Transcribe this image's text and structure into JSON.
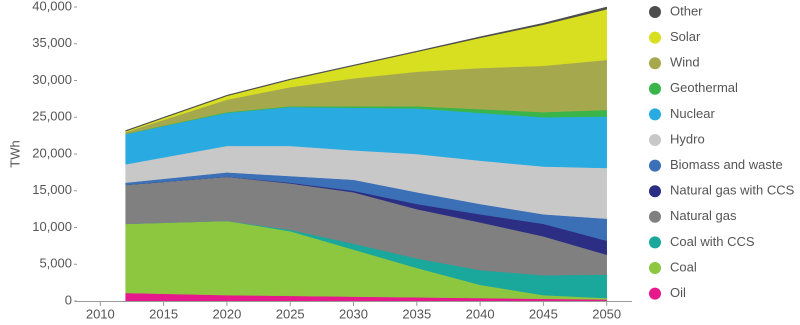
{
  "chart_data": {
    "type": "stacked-area",
    "y_label": "TWh",
    "x": [
      2012,
      2020,
      2025,
      2030,
      2035,
      2040,
      2045,
      2050
    ],
    "xlim": [
      2008,
      2052
    ],
    "xticks": [
      2010,
      2015,
      2020,
      2025,
      2030,
      2035,
      2040,
      2045,
      2050
    ],
    "ylim": [
      0,
      40000
    ],
    "yticks": [
      0,
      {
        "value": 5000,
        "label": "5,000"
      },
      {
        "value": 10000,
        "label": "10,000"
      },
      {
        "value": 15000,
        "label": "15,000"
      },
      {
        "value": 20000,
        "label": "20,000"
      },
      {
        "value": 25000,
        "label": "25,000"
      },
      {
        "value": 30000,
        "label": "30,000"
      },
      {
        "value": 35000,
        "label": "35,000"
      },
      {
        "value": 40000,
        "label": "40,000"
      }
    ],
    "series": [
      {
        "name": "Oil",
        "color": "#e6198c",
        "values": [
          1100,
          800,
          700,
          600,
          500,
          400,
          300,
          200
        ]
      },
      {
        "name": "Coal",
        "color": "#8dc63f",
        "values": [
          9400,
          10100,
          8800,
          6400,
          4000,
          1800,
          500,
          200
        ]
      },
      {
        "name": "Coal with CCS",
        "color": "#1aa79c",
        "values": [
          0,
          0,
          200,
          800,
          1300,
          2000,
          2700,
          3200
        ]
      },
      {
        "name": "Natural gas",
        "color": "#808080",
        "values": [
          5300,
          6000,
          6300,
          7000,
          6700,
          6500,
          5300,
          2700
        ]
      },
      {
        "name": "Natural gas with CCS",
        "color": "#2b2e83",
        "values": [
          0,
          0,
          100,
          200,
          700,
          1100,
          1700,
          1900
        ]
      },
      {
        "name": "Biomass and waste",
        "color": "#3b6fb6",
        "values": [
          300,
          600,
          900,
          1500,
          1600,
          1400,
          1300,
          3000
        ]
      },
      {
        "name": "Hydro",
        "color": "#c8c8c8",
        "values": [
          2500,
          3600,
          4100,
          4000,
          5200,
          5900,
          6500,
          6900
        ]
      },
      {
        "name": "Nuclear",
        "color": "#29abe2",
        "values": [
          4100,
          4500,
          5300,
          5800,
          6200,
          6500,
          6700,
          7000
        ]
      },
      {
        "name": "Geothermal",
        "color": "#39b54a",
        "values": [
          50,
          100,
          100,
          200,
          300,
          500,
          700,
          900
        ]
      },
      {
        "name": "Wind",
        "color": "#a6a84e",
        "values": [
          250,
          1700,
          2600,
          3800,
          4700,
          5600,
          6300,
          6800
        ]
      },
      {
        "name": "Solar",
        "color": "#d8df21",
        "values": [
          100,
          500,
          1000,
          1700,
          2700,
          4100,
          5600,
          6900
        ]
      },
      {
        "name": "Other",
        "color": "#4d4d4d",
        "values": [
          100,
          100,
          100,
          100,
          100,
          150,
          200,
          300
        ]
      }
    ]
  }
}
